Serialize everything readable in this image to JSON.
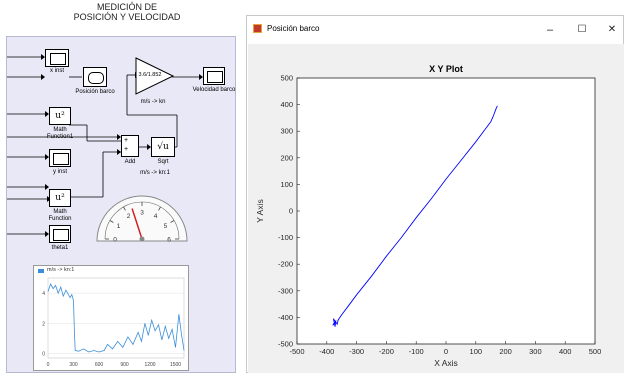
{
  "simulink": {
    "title_line1": "MEDICIÓN DE",
    "title_line2": "POSICIÓN Y VELOCIDAD",
    "blocks": {
      "x_inst": "x inst",
      "posicion_barco": "Posición barco",
      "gain_value": "3.6/1.852",
      "gain_caption": "m/s -> kn",
      "velocidad_barco": "Velocidad barco",
      "math_function1_line1": "Math",
      "math_function1_line2": "Function1",
      "math_symbol": "u²",
      "add_label": "Add",
      "sqrt_label": "Sqrt",
      "sqrt_symbol": "√u",
      "y_inst": "y inst",
      "gauge_label": "m/s -> kn:1",
      "math_function_line1": "Math",
      "math_function_line2": "Function",
      "theta1": "theta1",
      "small_legend": "m/s -> kn:1"
    },
    "gauge_ticks": [
      "0",
      "1",
      "2",
      "3",
      "4",
      "5",
      "6"
    ],
    "gauge_value": 2.4,
    "small_chart": {
      "yticks": [
        "4",
        "2",
        "0"
      ],
      "xticks": [
        "0",
        "300",
        "600",
        "900",
        "1200",
        "1500"
      ],
      "series": [
        [
          0,
          4.1
        ],
        [
          30,
          4.6
        ],
        [
          60,
          4.3
        ],
        [
          90,
          4.5
        ],
        [
          120,
          4.0
        ],
        [
          150,
          4.4
        ],
        [
          180,
          3.8
        ],
        [
          210,
          4.2
        ],
        [
          240,
          3.9
        ],
        [
          260,
          3.7
        ],
        [
          280,
          3.9
        ],
        [
          300,
          3.5
        ],
        [
          310,
          1.4
        ],
        [
          320,
          0.2
        ],
        [
          360,
          0.15
        ],
        [
          420,
          0.3
        ],
        [
          480,
          0.1
        ],
        [
          540,
          0.2
        ],
        [
          600,
          0.1
        ],
        [
          660,
          0.2
        ],
        [
          700,
          0.6
        ],
        [
          760,
          0.3
        ],
        [
          820,
          0.8
        ],
        [
          880,
          0.4
        ],
        [
          940,
          1.1
        ],
        [
          1000,
          0.6
        ],
        [
          1060,
          1.4
        ],
        [
          1100,
          0.8
        ],
        [
          1140,
          2.0
        ],
        [
          1180,
          1.2
        ],
        [
          1220,
          2.2
        ],
        [
          1260,
          1.5
        ],
        [
          1300,
          1.9
        ],
        [
          1340,
          0.9
        ],
        [
          1380,
          1.8
        ],
        [
          1420,
          1.0
        ],
        [
          1460,
          1.6
        ],
        [
          1500,
          0.4
        ],
        [
          1540,
          2.6
        ],
        [
          1570,
          1.3
        ],
        [
          1600,
          0.2
        ]
      ]
    }
  },
  "plot_window": {
    "title": "Posición barco",
    "controls": {
      "minimize": "–",
      "maximize": "☐",
      "close": "✕"
    },
    "plot_title": "X Y Plot"
  },
  "chart_data": {
    "type": "line",
    "title": "X Y Plot",
    "xlabel": "X Axis",
    "ylabel": "Y Axis",
    "xlim": [
      -500,
      500
    ],
    "ylim": [
      -500,
      500
    ],
    "xticks": [
      -500,
      -400,
      -300,
      -200,
      -100,
      0,
      100,
      200,
      300,
      400,
      500
    ],
    "yticks": [
      -500,
      -400,
      -300,
      -200,
      -100,
      0,
      100,
      200,
      300,
      400,
      500
    ],
    "grid": false,
    "series": [
      {
        "color": "#0000ff",
        "x": [
          -375,
          -380,
          -370,
          -372,
          -378,
          -365,
          -362,
          -350,
          -330,
          -300,
          -250,
          -200,
          -150,
          -100,
          -50,
          0,
          50,
          100,
          130,
          150,
          158,
          163,
          168,
          172,
          170
        ],
        "y": [
          -420,
          -430,
          -415,
          -435,
          -405,
          -425,
          -410,
          -390,
          -360,
          -315,
          -245,
          -170,
          -100,
          -25,
          45,
          120,
          190,
          260,
          305,
          335,
          355,
          370,
          385,
          395,
          392
        ]
      }
    ],
    "colors": {
      "line": "#0000ff",
      "axes_bg": "#ffffff",
      "figure_bg": "#f0f0f0"
    }
  }
}
